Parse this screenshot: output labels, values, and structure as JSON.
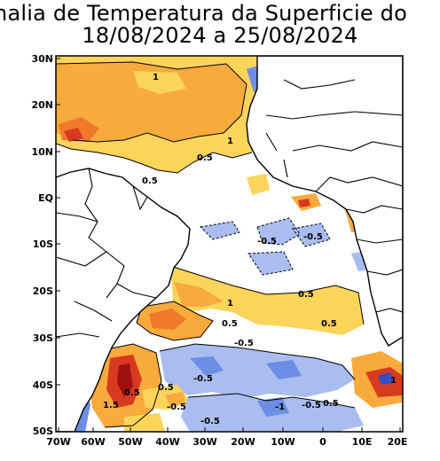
{
  "title": {
    "line1": "nalia de Temperatura da Superficie do",
    "line2": "18/08/2024 a 25/08/2024"
  },
  "axes": {
    "lat_labels": [
      "30N",
      "20N",
      "10N",
      "EQ",
      "10S",
      "20S",
      "30S",
      "40S",
      "50S"
    ],
    "lon_labels": [
      "70W",
      "60W",
      "50W",
      "40W",
      "30W",
      "20W",
      "10W",
      "0",
      "10E",
      "20E"
    ]
  },
  "contour_labels": [
    "1",
    "1",
    "0.5",
    "0.5",
    "-0.5",
    "-0.5",
    "0.5",
    "1",
    "0.5",
    "0.5",
    "-0.5",
    "-0.5",
    "0.5",
    "0.5",
    "1.5",
    "-0.5",
    "-0.5",
    "-1",
    "-0.5",
    "0.5",
    "1"
  ],
  "colors": {
    "anomaly_plus_0_5": "#fbd45a",
    "anomaly_plus_1": "#f8aa3c",
    "anomaly_plus_1_5": "#f07a2a",
    "anomaly_plus_2": "#d83a20",
    "anomaly_plus_3": "#a01010",
    "anomaly_minus_0_5": "#a9bdf0",
    "anomaly_minus_1": "#6d8ee6",
    "anomaly_minus_2": "#3050c8",
    "land": "#ffffff",
    "border": "#000000"
  }
}
